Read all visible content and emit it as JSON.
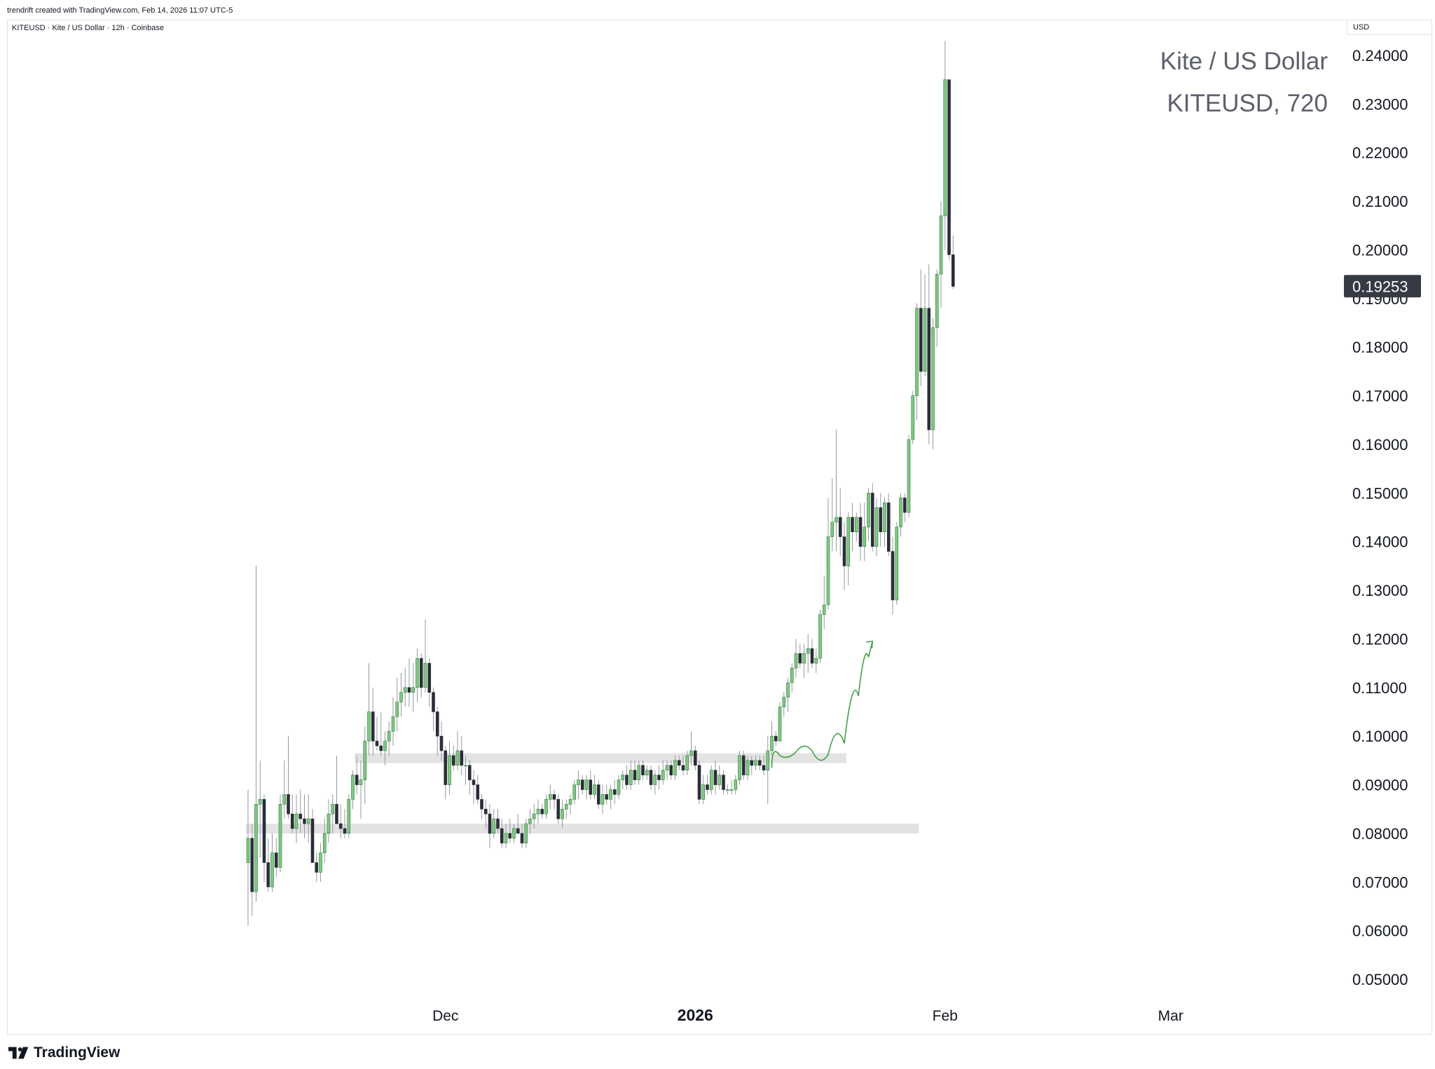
{
  "header": {
    "credit": "trendrift created with TradingView.com, Feb 14, 2026 11:07 UTC-5",
    "legend": "KITEUSD · Kite / US Dollar · 12h · Coinbase",
    "currency": "USD"
  },
  "watermark": {
    "line1": "Kite / US Dollar",
    "line2": "KITEUSD, 720"
  },
  "footer": {
    "brand": "TradingView"
  },
  "chart_data": {
    "type": "candlestick",
    "symbol": "KITEUSD",
    "interval": "12h",
    "exchange": "Coinbase",
    "ylim": [
      0.045,
      0.245
    ],
    "y_ticks": [
      "0.05000",
      "0.06000",
      "0.07000",
      "0.08000",
      "0.09000",
      "0.10000",
      "0.11000",
      "0.12000",
      "0.13000",
      "0.14000",
      "0.15000",
      "0.16000",
      "0.17000",
      "0.18000",
      "0.19000",
      "0.20000",
      "0.21000",
      "0.22000",
      "0.23000",
      "0.24000"
    ],
    "x_ticks": [
      {
        "label": "Dec",
        "bar": 49,
        "bold": false
      },
      {
        "label": "2026",
        "bar": 111,
        "bold": true
      },
      {
        "label": "Feb",
        "bar": 173,
        "bold": false
      },
      {
        "label": "Mar",
        "bar": 229,
        "bold": false
      }
    ],
    "last_price": "0.19253",
    "colors": {
      "up": "#81c784",
      "down": "#2a2e39",
      "wick": "#9598a1",
      "zone": "#e3e3e3",
      "drawing": "#43a047",
      "last_price_bg": "#363a45"
    },
    "zones": [
      {
        "from_bar": 27,
        "to_bar": 148,
        "low": 0.0945,
        "high": 0.0965
      },
      {
        "from_bar": 0,
        "to_bar": 166,
        "low": 0.08,
        "high": 0.082
      }
    ],
    "drawing": {
      "type": "path-with-arrow",
      "points": [
        [
          130,
          0.0935
        ],
        [
          134,
          0.0985
        ],
        [
          138,
          0.095
        ],
        [
          142,
          0.099
        ],
        [
          146,
          0.0935
        ],
        [
          150,
          0.1035
        ],
        [
          153,
          0.113
        ],
        [
          155,
          0.1195
        ]
      ]
    },
    "bars": [
      {
        "o": 0.074,
        "h": 0.089,
        "l": 0.061,
        "c": 0.079
      },
      {
        "o": 0.079,
        "h": 0.082,
        "l": 0.063,
        "c": 0.068
      },
      {
        "o": 0.068,
        "h": 0.135,
        "l": 0.066,
        "c": 0.086
      },
      {
        "o": 0.086,
        "h": 0.095,
        "l": 0.075,
        "c": 0.087
      },
      {
        "o": 0.087,
        "h": 0.088,
        "l": 0.07,
        "c": 0.074
      },
      {
        "o": 0.074,
        "h": 0.079,
        "l": 0.068,
        "c": 0.069
      },
      {
        "o": 0.069,
        "h": 0.08,
        "l": 0.068,
        "c": 0.076
      },
      {
        "o": 0.076,
        "h": 0.079,
        "l": 0.071,
        "c": 0.073
      },
      {
        "o": 0.073,
        "h": 0.088,
        "l": 0.072,
        "c": 0.086
      },
      {
        "o": 0.086,
        "h": 0.095,
        "l": 0.083,
        "c": 0.088
      },
      {
        "o": 0.088,
        "h": 0.1,
        "l": 0.083,
        "c": 0.084
      },
      {
        "o": 0.084,
        "h": 0.088,
        "l": 0.08,
        "c": 0.081
      },
      {
        "o": 0.081,
        "h": 0.088,
        "l": 0.078,
        "c": 0.084
      },
      {
        "o": 0.084,
        "h": 0.089,
        "l": 0.08,
        "c": 0.083
      },
      {
        "o": 0.083,
        "h": 0.088,
        "l": 0.079,
        "c": 0.082
      },
      {
        "o": 0.082,
        "h": 0.088,
        "l": 0.078,
        "c": 0.083
      },
      {
        "o": 0.083,
        "h": 0.085,
        "l": 0.074,
        "c": 0.074
      },
      {
        "o": 0.074,
        "h": 0.076,
        "l": 0.07,
        "c": 0.072
      },
      {
        "o": 0.072,
        "h": 0.078,
        "l": 0.07,
        "c": 0.076
      },
      {
        "o": 0.076,
        "h": 0.083,
        "l": 0.074,
        "c": 0.08
      },
      {
        "o": 0.08,
        "h": 0.087,
        "l": 0.078,
        "c": 0.084
      },
      {
        "o": 0.084,
        "h": 0.088,
        "l": 0.08,
        "c": 0.086
      },
      {
        "o": 0.086,
        "h": 0.096,
        "l": 0.083,
        "c": 0.082
      },
      {
        "o": 0.082,
        "h": 0.086,
        "l": 0.079,
        "c": 0.081
      },
      {
        "o": 0.081,
        "h": 0.085,
        "l": 0.079,
        "c": 0.08
      },
      {
        "o": 0.08,
        "h": 0.088,
        "l": 0.079,
        "c": 0.087
      },
      {
        "o": 0.087,
        "h": 0.093,
        "l": 0.085,
        "c": 0.092
      },
      {
        "o": 0.092,
        "h": 0.096,
        "l": 0.088,
        "c": 0.09
      },
      {
        "o": 0.09,
        "h": 0.095,
        "l": 0.083,
        "c": 0.091
      },
      {
        "o": 0.091,
        "h": 0.102,
        "l": 0.086,
        "c": 0.099
      },
      {
        "o": 0.099,
        "h": 0.115,
        "l": 0.096,
        "c": 0.105
      },
      {
        "o": 0.105,
        "h": 0.11,
        "l": 0.096,
        "c": 0.099
      },
      {
        "o": 0.099,
        "h": 0.104,
        "l": 0.097,
        "c": 0.098
      },
      {
        "o": 0.098,
        "h": 0.105,
        "l": 0.096,
        "c": 0.097
      },
      {
        "o": 0.097,
        "h": 0.101,
        "l": 0.094,
        "c": 0.099
      },
      {
        "o": 0.099,
        "h": 0.103,
        "l": 0.096,
        "c": 0.101
      },
      {
        "o": 0.101,
        "h": 0.108,
        "l": 0.098,
        "c": 0.104
      },
      {
        "o": 0.104,
        "h": 0.112,
        "l": 0.101,
        "c": 0.107
      },
      {
        "o": 0.107,
        "h": 0.113,
        "l": 0.104,
        "c": 0.109
      },
      {
        "o": 0.109,
        "h": 0.114,
        "l": 0.106,
        "c": 0.11
      },
      {
        "o": 0.11,
        "h": 0.116,
        "l": 0.106,
        "c": 0.109
      },
      {
        "o": 0.109,
        "h": 0.115,
        "l": 0.105,
        "c": 0.11
      },
      {
        "o": 0.11,
        "h": 0.118,
        "l": 0.107,
        "c": 0.116
      },
      {
        "o": 0.116,
        "h": 0.117,
        "l": 0.108,
        "c": 0.11
      },
      {
        "o": 0.11,
        "h": 0.124,
        "l": 0.109,
        "c": 0.115
      },
      {
        "o": 0.115,
        "h": 0.116,
        "l": 0.106,
        "c": 0.109
      },
      {
        "o": 0.109,
        "h": 0.11,
        "l": 0.101,
        "c": 0.105
      },
      {
        "o": 0.105,
        "h": 0.106,
        "l": 0.096,
        "c": 0.1
      },
      {
        "o": 0.1,
        "h": 0.103,
        "l": 0.095,
        "c": 0.097
      },
      {
        "o": 0.097,
        "h": 0.098,
        "l": 0.087,
        "c": 0.09
      },
      {
        "o": 0.09,
        "h": 0.099,
        "l": 0.088,
        "c": 0.096
      },
      {
        "o": 0.096,
        "h": 0.098,
        "l": 0.093,
        "c": 0.094
      },
      {
        "o": 0.094,
        "h": 0.101,
        "l": 0.093,
        "c": 0.097
      },
      {
        "o": 0.097,
        "h": 0.1,
        "l": 0.092,
        "c": 0.094
      },
      {
        "o": 0.094,
        "h": 0.096,
        "l": 0.09,
        "c": 0.094
      },
      {
        "o": 0.094,
        "h": 0.095,
        "l": 0.088,
        "c": 0.091
      },
      {
        "o": 0.091,
        "h": 0.093,
        "l": 0.086,
        "c": 0.09
      },
      {
        "o": 0.09,
        "h": 0.092,
        "l": 0.086,
        "c": 0.087
      },
      {
        "o": 0.087,
        "h": 0.088,
        "l": 0.083,
        "c": 0.085
      },
      {
        "o": 0.085,
        "h": 0.087,
        "l": 0.081,
        "c": 0.084
      },
      {
        "o": 0.084,
        "h": 0.086,
        "l": 0.077,
        "c": 0.08
      },
      {
        "o": 0.08,
        "h": 0.085,
        "l": 0.079,
        "c": 0.083
      },
      {
        "o": 0.083,
        "h": 0.085,
        "l": 0.08,
        "c": 0.081
      },
      {
        "o": 0.081,
        "h": 0.083,
        "l": 0.077,
        "c": 0.078
      },
      {
        "o": 0.078,
        "h": 0.082,
        "l": 0.077,
        "c": 0.08
      },
      {
        "o": 0.08,
        "h": 0.083,
        "l": 0.078,
        "c": 0.079
      },
      {
        "o": 0.079,
        "h": 0.082,
        "l": 0.078,
        "c": 0.081
      },
      {
        "o": 0.081,
        "h": 0.084,
        "l": 0.08,
        "c": 0.08
      },
      {
        "o": 0.08,
        "h": 0.082,
        "l": 0.077,
        "c": 0.078
      },
      {
        "o": 0.078,
        "h": 0.083,
        "l": 0.077,
        "c": 0.082
      },
      {
        "o": 0.082,
        "h": 0.085,
        "l": 0.08,
        "c": 0.083
      },
      {
        "o": 0.083,
        "h": 0.086,
        "l": 0.081,
        "c": 0.084
      },
      {
        "o": 0.084,
        "h": 0.087,
        "l": 0.082,
        "c": 0.085
      },
      {
        "o": 0.085,
        "h": 0.086,
        "l": 0.083,
        "c": 0.084
      },
      {
        "o": 0.084,
        "h": 0.088,
        "l": 0.083,
        "c": 0.087
      },
      {
        "o": 0.087,
        "h": 0.09,
        "l": 0.085,
        "c": 0.088
      },
      {
        "o": 0.088,
        "h": 0.089,
        "l": 0.085,
        "c": 0.087
      },
      {
        "o": 0.087,
        "h": 0.088,
        "l": 0.082,
        "c": 0.083
      },
      {
        "o": 0.083,
        "h": 0.087,
        "l": 0.081,
        "c": 0.085
      },
      {
        "o": 0.085,
        "h": 0.087,
        "l": 0.083,
        "c": 0.086
      },
      {
        "o": 0.086,
        "h": 0.088,
        "l": 0.084,
        "c": 0.087
      },
      {
        "o": 0.087,
        "h": 0.091,
        "l": 0.086,
        "c": 0.09
      },
      {
        "o": 0.09,
        "h": 0.093,
        "l": 0.087,
        "c": 0.091
      },
      {
        "o": 0.091,
        "h": 0.092,
        "l": 0.088,
        "c": 0.089
      },
      {
        "o": 0.089,
        "h": 0.092,
        "l": 0.087,
        "c": 0.091
      },
      {
        "o": 0.091,
        "h": 0.093,
        "l": 0.087,
        "c": 0.088
      },
      {
        "o": 0.088,
        "h": 0.092,
        "l": 0.087,
        "c": 0.09
      },
      {
        "o": 0.09,
        "h": 0.091,
        "l": 0.085,
        "c": 0.086
      },
      {
        "o": 0.086,
        "h": 0.09,
        "l": 0.084,
        "c": 0.088
      },
      {
        "o": 0.088,
        "h": 0.09,
        "l": 0.086,
        "c": 0.087
      },
      {
        "o": 0.087,
        "h": 0.09,
        "l": 0.085,
        "c": 0.089
      },
      {
        "o": 0.089,
        "h": 0.091,
        "l": 0.086,
        "c": 0.088
      },
      {
        "o": 0.088,
        "h": 0.092,
        "l": 0.087,
        "c": 0.091
      },
      {
        "o": 0.091,
        "h": 0.093,
        "l": 0.089,
        "c": 0.092
      },
      {
        "o": 0.092,
        "h": 0.094,
        "l": 0.089,
        "c": 0.09
      },
      {
        "o": 0.09,
        "h": 0.095,
        "l": 0.089,
        "c": 0.093
      },
      {
        "o": 0.093,
        "h": 0.095,
        "l": 0.09,
        "c": 0.091
      },
      {
        "o": 0.091,
        "h": 0.095,
        "l": 0.09,
        "c": 0.094
      },
      {
        "o": 0.094,
        "h": 0.095,
        "l": 0.091,
        "c": 0.092
      },
      {
        "o": 0.092,
        "h": 0.094,
        "l": 0.091,
        "c": 0.093
      },
      {
        "o": 0.093,
        "h": 0.094,
        "l": 0.089,
        "c": 0.09
      },
      {
        "o": 0.09,
        "h": 0.093,
        "l": 0.088,
        "c": 0.092
      },
      {
        "o": 0.092,
        "h": 0.094,
        "l": 0.089,
        "c": 0.091
      },
      {
        "o": 0.091,
        "h": 0.095,
        "l": 0.09,
        "c": 0.093
      },
      {
        "o": 0.093,
        "h": 0.095,
        "l": 0.091,
        "c": 0.094
      },
      {
        "o": 0.094,
        "h": 0.095,
        "l": 0.091,
        "c": 0.092
      },
      {
        "o": 0.092,
        "h": 0.096,
        "l": 0.091,
        "c": 0.095
      },
      {
        "o": 0.095,
        "h": 0.096,
        "l": 0.093,
        "c": 0.094
      },
      {
        "o": 0.094,
        "h": 0.096,
        "l": 0.092,
        "c": 0.093
      },
      {
        "o": 0.093,
        "h": 0.097,
        "l": 0.092,
        "c": 0.096
      },
      {
        "o": 0.096,
        "h": 0.101,
        "l": 0.094,
        "c": 0.097
      },
      {
        "o": 0.097,
        "h": 0.098,
        "l": 0.093,
        "c": 0.094
      },
      {
        "o": 0.094,
        "h": 0.095,
        "l": 0.086,
        "c": 0.087
      },
      {
        "o": 0.087,
        "h": 0.092,
        "l": 0.086,
        "c": 0.09
      },
      {
        "o": 0.09,
        "h": 0.092,
        "l": 0.088,
        "c": 0.089
      },
      {
        "o": 0.089,
        "h": 0.094,
        "l": 0.088,
        "c": 0.093
      },
      {
        "o": 0.093,
        "h": 0.095,
        "l": 0.088,
        "c": 0.09
      },
      {
        "o": 0.09,
        "h": 0.094,
        "l": 0.089,
        "c": 0.092
      },
      {
        "o": 0.092,
        "h": 0.093,
        "l": 0.088,
        "c": 0.089
      },
      {
        "o": 0.089,
        "h": 0.09,
        "l": 0.088,
        "c": 0.089
      },
      {
        "o": 0.089,
        "h": 0.091,
        "l": 0.088,
        "c": 0.089
      },
      {
        "o": 0.089,
        "h": 0.092,
        "l": 0.088,
        "c": 0.091
      },
      {
        "o": 0.091,
        "h": 0.097,
        "l": 0.09,
        "c": 0.096
      },
      {
        "o": 0.096,
        "h": 0.097,
        "l": 0.091,
        "c": 0.092
      },
      {
        "o": 0.092,
        "h": 0.096,
        "l": 0.091,
        "c": 0.095
      },
      {
        "o": 0.095,
        "h": 0.096,
        "l": 0.092,
        "c": 0.094
      },
      {
        "o": 0.094,
        "h": 0.096,
        "l": 0.093,
        "c": 0.095
      },
      {
        "o": 0.095,
        "h": 0.096,
        "l": 0.093,
        "c": 0.094
      },
      {
        "o": 0.094,
        "h": 0.096,
        "l": 0.092,
        "c": 0.093
      },
      {
        "o": 0.093,
        "h": 0.1,
        "l": 0.086,
        "c": 0.097
      },
      {
        "o": 0.097,
        "h": 0.103,
        "l": 0.096,
        "c": 0.1
      },
      {
        "o": 0.1,
        "h": 0.101,
        "l": 0.098,
        "c": 0.099
      },
      {
        "o": 0.099,
        "h": 0.107,
        "l": 0.099,
        "c": 0.106
      },
      {
        "o": 0.106,
        "h": 0.109,
        "l": 0.104,
        "c": 0.108
      },
      {
        "o": 0.108,
        "h": 0.112,
        "l": 0.105,
        "c": 0.111
      },
      {
        "o": 0.111,
        "h": 0.115,
        "l": 0.109,
        "c": 0.114
      },
      {
        "o": 0.114,
        "h": 0.12,
        "l": 0.112,
        "c": 0.117
      },
      {
        "o": 0.117,
        "h": 0.119,
        "l": 0.114,
        "c": 0.115
      },
      {
        "o": 0.115,
        "h": 0.119,
        "l": 0.112,
        "c": 0.117
      },
      {
        "o": 0.117,
        "h": 0.121,
        "l": 0.113,
        "c": 0.118
      },
      {
        "o": 0.118,
        "h": 0.12,
        "l": 0.114,
        "c": 0.115
      },
      {
        "o": 0.115,
        "h": 0.118,
        "l": 0.113,
        "c": 0.116
      },
      {
        "o": 0.116,
        "h": 0.126,
        "l": 0.115,
        "c": 0.125
      },
      {
        "o": 0.125,
        "h": 0.133,
        "l": 0.122,
        "c": 0.127
      },
      {
        "o": 0.127,
        "h": 0.149,
        "l": 0.126,
        "c": 0.141
      },
      {
        "o": 0.141,
        "h": 0.153,
        "l": 0.138,
        "c": 0.144
      },
      {
        "o": 0.144,
        "h": 0.163,
        "l": 0.138,
        "c": 0.145
      },
      {
        "o": 0.145,
        "h": 0.151,
        "l": 0.137,
        "c": 0.141
      },
      {
        "o": 0.141,
        "h": 0.144,
        "l": 0.13,
        "c": 0.135
      },
      {
        "o": 0.135,
        "h": 0.146,
        "l": 0.131,
        "c": 0.145
      },
      {
        "o": 0.145,
        "h": 0.148,
        "l": 0.138,
        "c": 0.142
      },
      {
        "o": 0.142,
        "h": 0.146,
        "l": 0.14,
        "c": 0.145
      },
      {
        "o": 0.145,
        "h": 0.148,
        "l": 0.136,
        "c": 0.139
      },
      {
        "o": 0.139,
        "h": 0.148,
        "l": 0.136,
        "c": 0.143
      },
      {
        "o": 0.143,
        "h": 0.151,
        "l": 0.14,
        "c": 0.15
      },
      {
        "o": 0.15,
        "h": 0.152,
        "l": 0.138,
        "c": 0.139
      },
      {
        "o": 0.139,
        "h": 0.149,
        "l": 0.137,
        "c": 0.147
      },
      {
        "o": 0.147,
        "h": 0.15,
        "l": 0.139,
        "c": 0.142
      },
      {
        "o": 0.142,
        "h": 0.149,
        "l": 0.139,
        "c": 0.148
      },
      {
        "o": 0.148,
        "h": 0.15,
        "l": 0.137,
        "c": 0.138
      },
      {
        "o": 0.138,
        "h": 0.141,
        "l": 0.125,
        "c": 0.128
      },
      {
        "o": 0.128,
        "h": 0.144,
        "l": 0.127,
        "c": 0.143
      },
      {
        "o": 0.143,
        "h": 0.15,
        "l": 0.141,
        "c": 0.149
      },
      {
        "o": 0.149,
        "h": 0.15,
        "l": 0.144,
        "c": 0.146
      },
      {
        "o": 0.146,
        "h": 0.162,
        "l": 0.145,
        "c": 0.161
      },
      {
        "o": 0.161,
        "h": 0.171,
        "l": 0.16,
        "c": 0.17
      },
      {
        "o": 0.17,
        "h": 0.189,
        "l": 0.165,
        "c": 0.188
      },
      {
        "o": 0.188,
        "h": 0.196,
        "l": 0.172,
        "c": 0.175
      },
      {
        "o": 0.175,
        "h": 0.195,
        "l": 0.174,
        "c": 0.188
      },
      {
        "o": 0.188,
        "h": 0.197,
        "l": 0.16,
        "c": 0.163
      },
      {
        "o": 0.163,
        "h": 0.186,
        "l": 0.159,
        "c": 0.184
      },
      {
        "o": 0.184,
        "h": 0.196,
        "l": 0.18,
        "c": 0.195
      },
      {
        "o": 0.195,
        "h": 0.21,
        "l": 0.188,
        "c": 0.207
      },
      {
        "o": 0.207,
        "h": 0.243,
        "l": 0.2,
        "c": 0.235
      },
      {
        "o": 0.235,
        "h": 0.235,
        "l": 0.198,
        "c": 0.199
      },
      {
        "o": 0.199,
        "h": 0.203,
        "l": 0.192,
        "c": 0.1925
      }
    ]
  }
}
